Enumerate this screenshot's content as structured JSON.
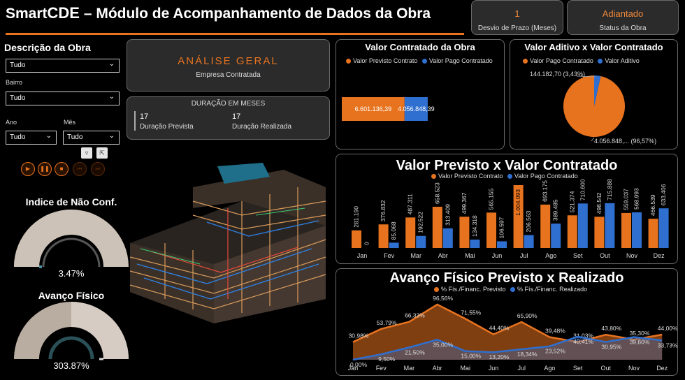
{
  "header": {
    "title_prefix": "Smart",
    "title_brand": "CDE",
    "title_rest": " – Módulo de Acompanhamento de Dados da Obra"
  },
  "kpis": [
    {
      "value": "1",
      "label": "Desvio de Prazo (Meses)"
    },
    {
      "value": "Adiantado",
      "label": "Status da Obra"
    }
  ],
  "filters": {
    "title": "Descrição da Obra",
    "descricao": {
      "value": "Tudo"
    },
    "bairro": {
      "label": "Bairro",
      "value": "Tudo"
    },
    "ano": {
      "label": "Ano",
      "value": "Tudo"
    },
    "mes": {
      "label": "Mês",
      "value": "Tudo"
    }
  },
  "analise": {
    "heading": "ANÁLISE GERAL",
    "subheading": "Empresa Contratada"
  },
  "duracao": {
    "heading": "DURAÇÃO EM MESES",
    "prevista_value": "17",
    "prevista_label": "Duração Prevista",
    "realizada_value": "17",
    "realizada_label": "Duração Realizada"
  },
  "gauges": [
    {
      "title": "Indice de Não Conf.",
      "value": "3.47%",
      "fraction": 0.0347
    },
    {
      "title": "Avanço Físico",
      "value": "303.87%",
      "fraction": 1.0
    }
  ],
  "colors": {
    "orange": "#e8731f",
    "blue": "#2f6fd0",
    "gauge_fill": "#cdc2b8",
    "gauge_dark": "#7d746c"
  },
  "icons": [
    "filter-icon",
    "focus-icon",
    "play-icon",
    "pause-icon",
    "stop-icon",
    "previous-icon",
    "next-icon"
  ],
  "charts": {
    "contratado": {
      "title": "Valor Contratado da Obra",
      "legend": [
        "Valor Previsto Contrato",
        "Valor Pago Contratado"
      ],
      "labels": [
        "6.601.136,39",
        "4.056.848,39"
      ]
    },
    "aditivo": {
      "title": "Valor Aditivo x Valor Contratado",
      "legend": [
        "Valor Pago Contratado",
        "Valor Aditivo"
      ],
      "label_small": "144.182,70 (3,43%)",
      "label_large": "4.056.848,... (96,57%)"
    },
    "mensal": {
      "title": "Valor Previsto x Valor Contratado",
      "legend": [
        "Valor Previsto Contrato",
        "Valor Pago Contratado"
      ]
    },
    "avanco": {
      "title": "Avanço Físico Previsto x Realizado",
      "legend": [
        "% Fís./Financ. Previsto",
        "% Fís./Financ. Realizado"
      ]
    }
  },
  "chart_data": [
    {
      "type": "bar",
      "title": "Valor Contratado da Obra",
      "series": [
        {
          "name": "Valor Previsto Contrato",
          "values": [
            6601136.39
          ]
        },
        {
          "name": "Valor Pago Contratado",
          "values": [
            4056848.39
          ]
        }
      ]
    },
    {
      "type": "pie",
      "title": "Valor Aditivo x Valor Contratado",
      "categories": [
        "Valor Pago Contratado",
        "Valor Aditivo"
      ],
      "values": [
        4056848.39,
        144182.7
      ],
      "percents": [
        "96,57%",
        "3,43%"
      ]
    },
    {
      "type": "bar",
      "title": "Valor Previsto x Valor Contratado",
      "categories": [
        "Jan",
        "Fev",
        "Mar",
        "Abr",
        "Mai",
        "Jun",
        "Jul",
        "Ago",
        "Set",
        "Out",
        "Nov",
        "Dez"
      ],
      "series": [
        {
          "name": "Valor Previsto Contrato",
          "values": [
            281190,
            376832,
            487311,
            658523,
            499367,
            565155,
            1004093,
            693175,
            521374,
            498542,
            559037,
            466539
          ],
          "labels": [
            "281.190",
            "376.832",
            "487.311",
            "658.523",
            "499.367",
            "565.155",
            "1.004.093",
            "693.175",
            "521.374",
            "498.542",
            "559.037",
            "466.539"
          ]
        },
        {
          "name": "Valor Pago Contratado",
          "values": [
            0,
            85068,
            192522,
            313409,
            134318,
            106597,
            206563,
            389485,
            710600,
            715888,
            568993,
            633406
          ],
          "labels": [
            "0",
            "85.068",
            "192.522",
            "313.409",
            "134.318",
            "106.597",
            "206.563",
            "389.485",
            "710.600",
            "715.888",
            "568.993",
            "633.406"
          ]
        }
      ]
    },
    {
      "type": "area",
      "title": "Avanço Físico Previsto x Realizado",
      "categories": [
        "Jan",
        "Fev",
        "Mar",
        "Abr",
        "Mai",
        "Jun",
        "Jul",
        "Ago",
        "Set",
        "Out",
        "Nov",
        "Dez"
      ],
      "series": [
        {
          "name": "% Fís./Financ. Previsto",
          "values": [
            30.98,
            53.79,
            66.33,
            96.56,
            71.55,
            44.4,
            65.9,
            39.48,
            31.03,
            43.8,
            35.3,
            44.0
          ],
          "labels": [
            "30,98%",
            "53,79%",
            "66,33%",
            "96,56%",
            "71,55%",
            "44,40%",
            "65,90%",
            "39,48%",
            "31,03%",
            "43,80%",
            "35,30%",
            "44,00%"
          ]
        },
        {
          "name": "% Fís./Financ. Realizado",
          "values": [
            0.0,
            9.5,
            21.5,
            35.0,
            15.0,
            13.2,
            18.34,
            23.52,
            40.41,
            30.95,
            39.6,
            33.73
          ],
          "labels": [
            "0,00%",
            "9,50%",
            "21,50%",
            "35,00%",
            "15,00%",
            "13,20%",
            "18,34%",
            "23,52%",
            "40,41%",
            "30,95%",
            "39,60%",
            "33,73%"
          ]
        }
      ]
    }
  ]
}
